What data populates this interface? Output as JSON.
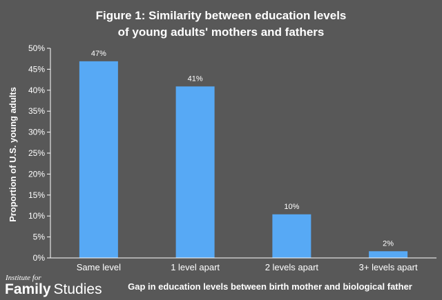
{
  "chart_data": {
    "type": "bar",
    "title_lines": [
      "Figure 1: Similarity between education levels",
      "of young adults' mothers and fathers"
    ],
    "categories": [
      "Same level",
      "1 level apart",
      "2 levels apart",
      "3+ levels apart"
    ],
    "values": [
      47,
      41,
      10,
      2
    ],
    "data_labels": [
      "47%",
      "41%",
      "10%",
      "2%"
    ],
    "value_scale": [
      46.9,
      40.9,
      10.4,
      1.6
    ],
    "xlabel": "Gap in education levels between birth mother and biological father",
    "ylabel": "Proportion of U.S. young adults",
    "ylim": [
      0,
      50
    ],
    "yticks": [
      0,
      5,
      10,
      15,
      20,
      25,
      30,
      35,
      40,
      45,
      50
    ],
    "ytick_labels": [
      "0%",
      "5%",
      "10%",
      "15%",
      "20%",
      "25%",
      "30%",
      "35%",
      "40%",
      "45%",
      "50%"
    ],
    "grid": false,
    "bar_color": "#57a9f5",
    "background_color": "#585858",
    "axis_color": "#ffffff"
  },
  "logo": {
    "line1": "Institute for",
    "word1": "Family",
    "word2": "Studies"
  }
}
